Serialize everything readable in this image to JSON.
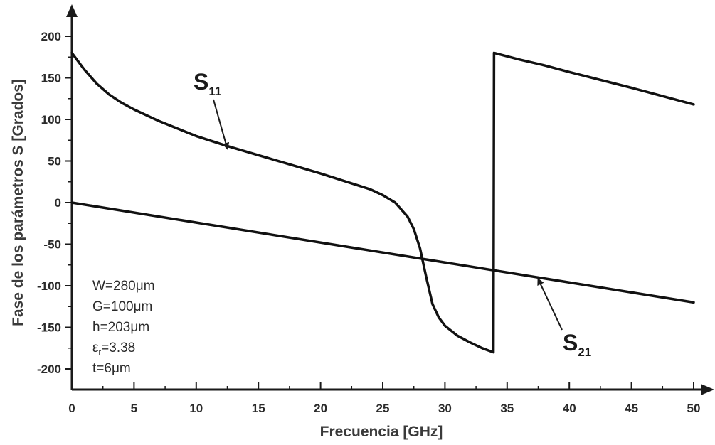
{
  "chart_data": {
    "type": "line",
    "xlabel": "Frecuencia [GHz]",
    "ylabel": "Fase de los parámetros S [Grados]",
    "xlim": [
      0,
      50
    ],
    "ylim": [
      -200,
      200
    ],
    "xticks": [
      0,
      5,
      10,
      15,
      20,
      25,
      30,
      35,
      40,
      45,
      50
    ],
    "yticks": [
      200,
      150,
      100,
      50,
      0,
      -50,
      -100,
      -150,
      -200
    ],
    "grid": false,
    "legend": "none",
    "series": [
      {
        "name": "S11",
        "label_main": "S",
        "label_sub": "11",
        "x": [
          0,
          1,
          2,
          3,
          4,
          5,
          7,
          10,
          12.5,
          15,
          20,
          24,
          25,
          26,
          27,
          27.5,
          28,
          28.5,
          29,
          29.5,
          30,
          31,
          32,
          33,
          33.9,
          33.95,
          36,
          38,
          40,
          45,
          50
        ],
        "y": [
          180,
          160,
          143,
          130,
          120,
          112,
          98,
          80,
          68,
          57,
          35,
          16,
          9,
          0,
          -17,
          -32,
          -55,
          -90,
          -122,
          -138,
          -148,
          -160,
          -168,
          -175,
          -180,
          180,
          172,
          165,
          157,
          138,
          118
        ]
      },
      {
        "name": "S21",
        "label_main": "S",
        "label_sub": "21",
        "x": [
          0,
          50
        ],
        "y": [
          0,
          -120
        ]
      }
    ],
    "annotations": [
      {
        "text_main": "S",
        "text_sub": "11",
        "series": "S11",
        "points_to_x": 12.5,
        "points_to_y": 65
      },
      {
        "text_main": "S",
        "text_sub": "21",
        "series": "S21",
        "points_to_x": 37.5,
        "points_to_y": -92
      }
    ],
    "parameters": [
      {
        "prefix": "W=280",
        "symbol": "μ",
        "suffix": "m"
      },
      {
        "prefix": "G=100",
        "symbol": "μ",
        "suffix": "m"
      },
      {
        "prefix": "h=203",
        "symbol": "μ",
        "suffix": "m"
      },
      {
        "prefix": "ε",
        "sub": "r",
        "suffix": "=3.38"
      },
      {
        "prefix": "t=6",
        "symbol": "μ",
        "suffix": "m"
      }
    ]
  }
}
